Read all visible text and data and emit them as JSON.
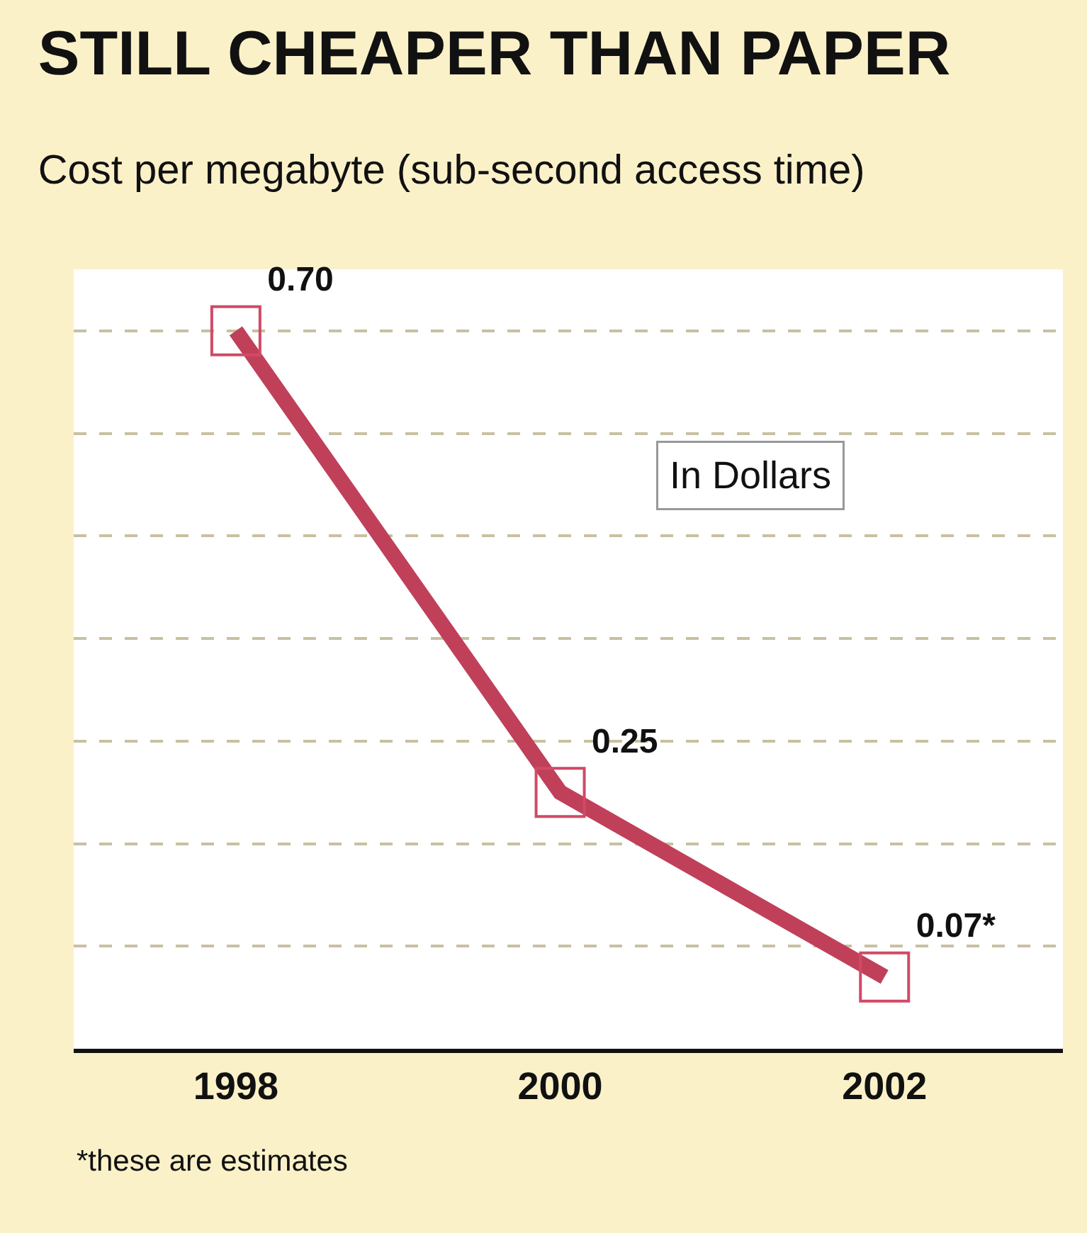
{
  "chart_data": {
    "type": "line",
    "title": "STILL CHEAPER THAN PAPER",
    "subtitle": "Cost per megabyte (sub-second access time)",
    "categories": [
      "1998",
      "2000",
      "2002"
    ],
    "series": [
      {
        "color": "#c0405a",
        "values": [
          0.7,
          0.25,
          0.07
        ],
        "value_labels": [
          "0.70",
          "0.25",
          "0.07*"
        ]
      }
    ],
    "ylim": [
      0,
      0.76
    ],
    "yticks": [
      {
        "value": 0.1,
        "label": null
      },
      {
        "value": 0.2,
        "label": null
      },
      {
        "value": 0.3,
        "label": null
      },
      {
        "value": 0.4,
        "label": null
      },
      {
        "value": 0.5,
        "label": null
      },
      {
        "value": 0.6,
        "label": null
      },
      {
        "value": 0.7,
        "label": null
      }
    ],
    "grid": "y",
    "tick_labels": "x",
    "marker": "square",
    "line_style": "solid",
    "annotations": [
      "In Dollars",
      "*these are estimates"
    ]
  }
}
